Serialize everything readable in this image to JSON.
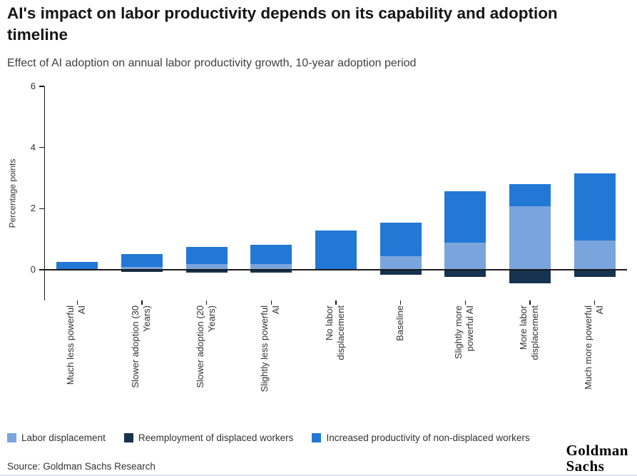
{
  "chart_data": {
    "type": "bar",
    "stacked": true,
    "title": "AI's impact on labor productivity depends on its capability and adoption timeline",
    "subtitle": "Effect of AI adoption on annual labor productivity growth, 10-year adoption period",
    "ylabel": "Percentage points",
    "ylim": [
      -1,
      6
    ],
    "yticks": [
      0,
      2,
      4,
      6
    ],
    "grid": false,
    "legend_position": "bottom",
    "categories": [
      "Much less powerful\nAI",
      "Slower adoption (30\nYears)",
      "Slower adoption (20\nYears)",
      "Slightly less powerful\nAI",
      "No labor\ndisplacement",
      "Baseline",
      "Slightly more\npowerful AI",
      "More labor\ndisplacement",
      "Much more powerful\nAI"
    ],
    "series": [
      {
        "name": "Labor displacement",
        "color": "#7aa5dc",
        "values": [
          0,
          0.1,
          0.18,
          0.18,
          0,
          0.45,
          0.9,
          2.08,
          0.95
        ]
      },
      {
        "name": "Reemployment of displaced workers",
        "color": "#16334f",
        "values": [
          0,
          -0.06,
          -0.1,
          -0.1,
          0,
          -0.17,
          -0.22,
          -0.45,
          -0.22
        ]
      },
      {
        "name": "Increased productivity of non-displaced workers",
        "color": "#2278d5",
        "values": [
          0.26,
          0.42,
          0.58,
          0.65,
          1.28,
          1.1,
          1.67,
          0.73,
          2.2
        ]
      }
    ]
  },
  "footer": {
    "source": "Source: Goldman Sachs Research",
    "logo_line1": "Goldman",
    "logo_line2": "Sachs"
  }
}
